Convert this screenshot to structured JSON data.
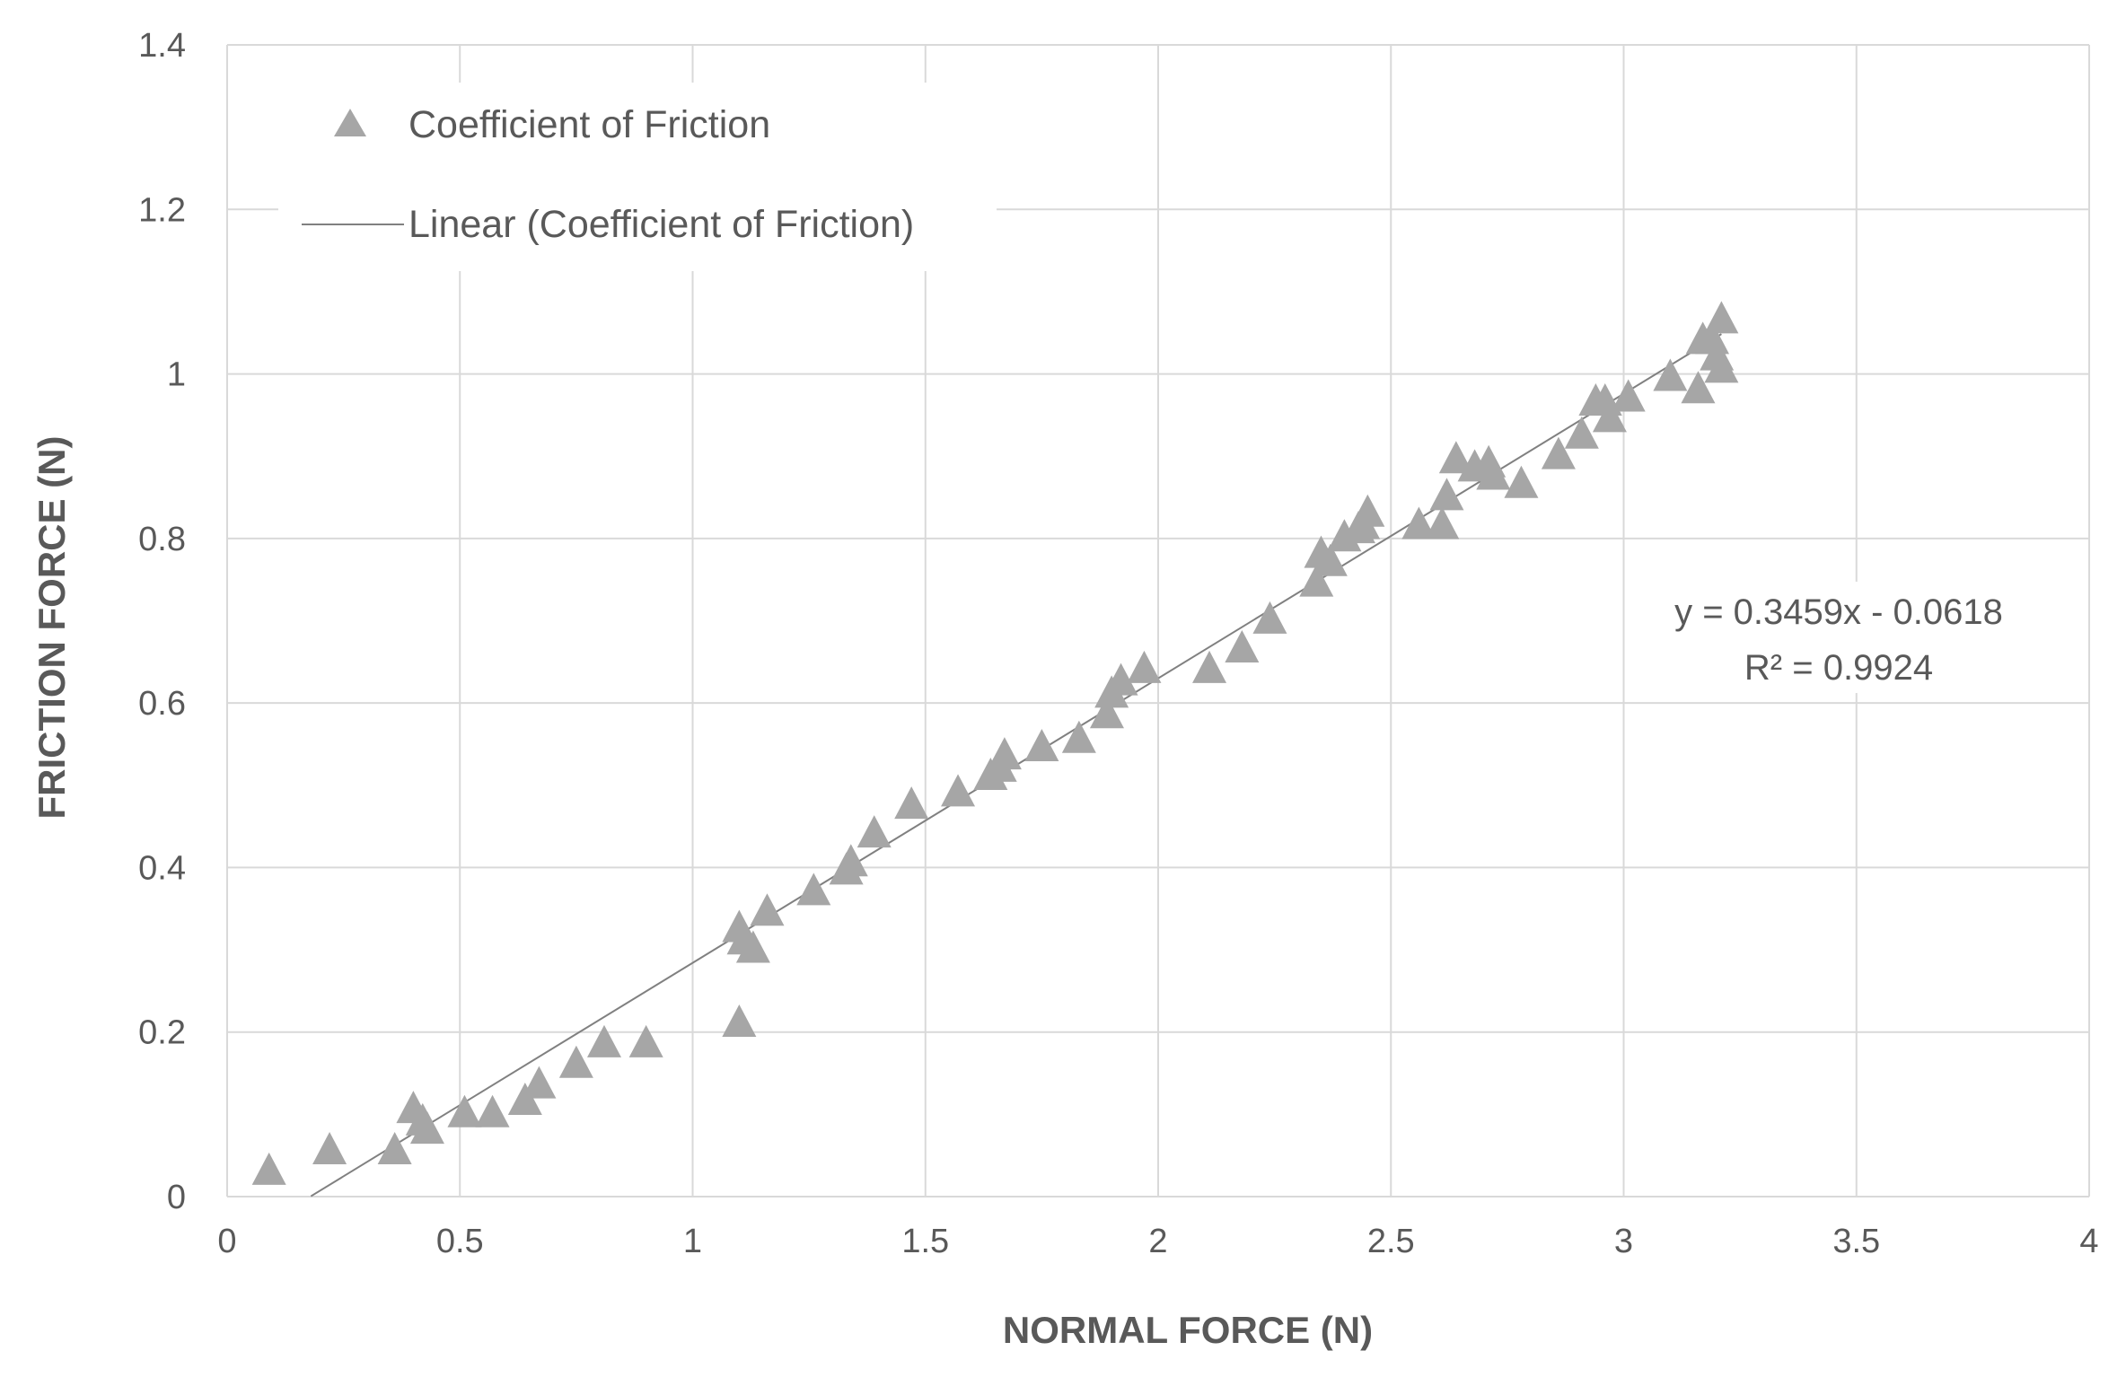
{
  "chart_data": {
    "type": "scatter",
    "xlabel": "NORMAL FORCE (N)",
    "ylabel": "FRICTION FORCE (N)",
    "xlim": [
      0,
      4
    ],
    "ylim": [
      0,
      1.4
    ],
    "x_ticks": [
      "0",
      "0.5",
      "1",
      "1.5",
      "2",
      "2.5",
      "3",
      "3.5",
      "4"
    ],
    "y_ticks": [
      "0",
      "0.2",
      "0.4",
      "0.6",
      "0.8",
      "1",
      "1.2",
      "1.4"
    ],
    "grid": true,
    "legend_position": "top-left",
    "colors": {
      "marker": "#a6a6a6",
      "trendline": "#808080",
      "grid": "#d9d9d9",
      "text": "#595959"
    },
    "series": [
      {
        "name": "Coefficient of Friction",
        "marker": "triangle",
        "points": [
          [
            0.09,
            0.03
          ],
          [
            0.22,
            0.055
          ],
          [
            0.36,
            0.055
          ],
          [
            0.4,
            0.105
          ],
          [
            0.42,
            0.09
          ],
          [
            0.43,
            0.08
          ],
          [
            0.51,
            0.1
          ],
          [
            0.57,
            0.1
          ],
          [
            0.64,
            0.115
          ],
          [
            0.67,
            0.135
          ],
          [
            0.75,
            0.16
          ],
          [
            0.81,
            0.185
          ],
          [
            0.9,
            0.185
          ],
          [
            1.1,
            0.21
          ],
          [
            1.1,
            0.325
          ],
          [
            1.11,
            0.31
          ],
          [
            1.13,
            0.3
          ],
          [
            1.16,
            0.345
          ],
          [
            1.26,
            0.37
          ],
          [
            1.33,
            0.395
          ],
          [
            1.34,
            0.405
          ],
          [
            1.39,
            0.44
          ],
          [
            1.47,
            0.475
          ],
          [
            1.57,
            0.49
          ],
          [
            1.64,
            0.51
          ],
          [
            1.66,
            0.52
          ],
          [
            1.67,
            0.535
          ],
          [
            1.75,
            0.545
          ],
          [
            1.83,
            0.555
          ],
          [
            1.89,
            0.585
          ],
          [
            1.9,
            0.61
          ],
          [
            1.92,
            0.625
          ],
          [
            1.97,
            0.64
          ],
          [
            2.11,
            0.64
          ],
          [
            2.18,
            0.665
          ],
          [
            2.24,
            0.7
          ],
          [
            2.34,
            0.745
          ],
          [
            2.35,
            0.78
          ],
          [
            2.37,
            0.77
          ],
          [
            2.4,
            0.8
          ],
          [
            2.43,
            0.81
          ],
          [
            2.44,
            0.815
          ],
          [
            2.45,
            0.83
          ],
          [
            2.56,
            0.815
          ],
          [
            2.61,
            0.815
          ],
          [
            2.62,
            0.85
          ],
          [
            2.64,
            0.895
          ],
          [
            2.68,
            0.885
          ],
          [
            2.71,
            0.89
          ],
          [
            2.72,
            0.875
          ],
          [
            2.78,
            0.865
          ],
          [
            2.86,
            0.9
          ],
          [
            2.91,
            0.925
          ],
          [
            2.94,
            0.965
          ],
          [
            2.96,
            0.965
          ],
          [
            2.97,
            0.945
          ],
          [
            3.01,
            0.97
          ],
          [
            3.1,
            0.995
          ],
          [
            3.16,
            0.98
          ],
          [
            3.17,
            1.04
          ],
          [
            3.19,
            1.04
          ],
          [
            3.2,
            1.02
          ],
          [
            3.21,
            1.065
          ],
          [
            3.21,
            1.005
          ]
        ]
      }
    ],
    "trendline": {
      "name": "Linear (Coefficient of Friction)",
      "slope": 0.3459,
      "intercept": -0.0618,
      "x_range": [
        0.18,
        3.21
      ],
      "equation_label": "y = 0.3459x - 0.0618",
      "r2_label": "R² = 0.9924"
    }
  }
}
